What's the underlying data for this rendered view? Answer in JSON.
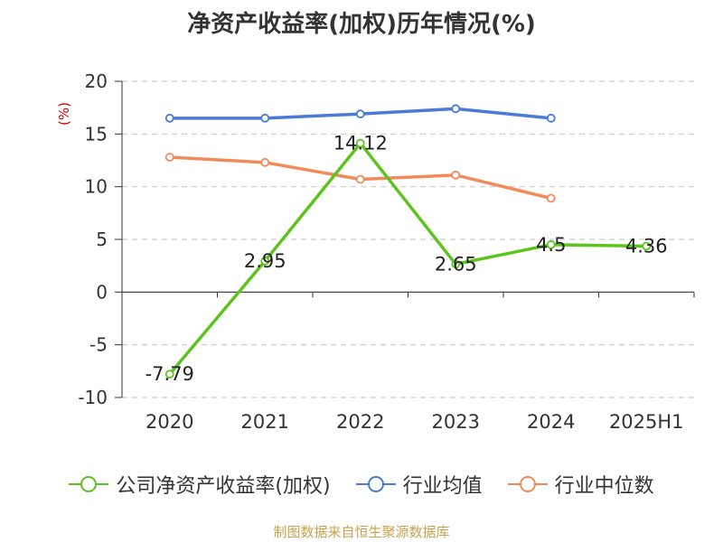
{
  "title": "净资产收益率(加权)历年情况(%)",
  "source": "制图数据来自恒生聚源数据库",
  "colors": {
    "company": "#5cc41d",
    "industry_avg": "#4b7bd6",
    "industry_median": "#f38a5a",
    "axis": "#333333",
    "grid": "#cccccc",
    "ylabel": "#cc0000"
  },
  "chart_data": {
    "type": "line",
    "title": "净资产收益率(加权)历年情况(%)",
    "ylabel": "(%)",
    "xlabel": "",
    "categories": [
      "2020",
      "2021",
      "2022",
      "2023",
      "2024",
      "2025H1"
    ],
    "ylim": [
      -10,
      20
    ],
    "yticks": [
      20,
      15,
      10,
      5,
      0,
      -5,
      -10
    ],
    "grid": true,
    "legend": "bottom",
    "series": [
      {
        "name": "公司净资产收益率(加权)",
        "color_key": "company",
        "values": [
          -7.79,
          2.95,
          14.12,
          2.65,
          4.5,
          4.36
        ],
        "labels": [
          "-7.79",
          "2.95",
          "14.12",
          "2.65",
          "4.5",
          "4.36"
        ]
      },
      {
        "name": "行业均值",
        "color_key": "industry_avg",
        "values": [
          16.5,
          16.5,
          16.9,
          17.4,
          16.5,
          null
        ]
      },
      {
        "name": "行业中位数",
        "color_key": "industry_median",
        "values": [
          12.8,
          12.3,
          10.7,
          11.1,
          8.9,
          null
        ]
      }
    ]
  }
}
